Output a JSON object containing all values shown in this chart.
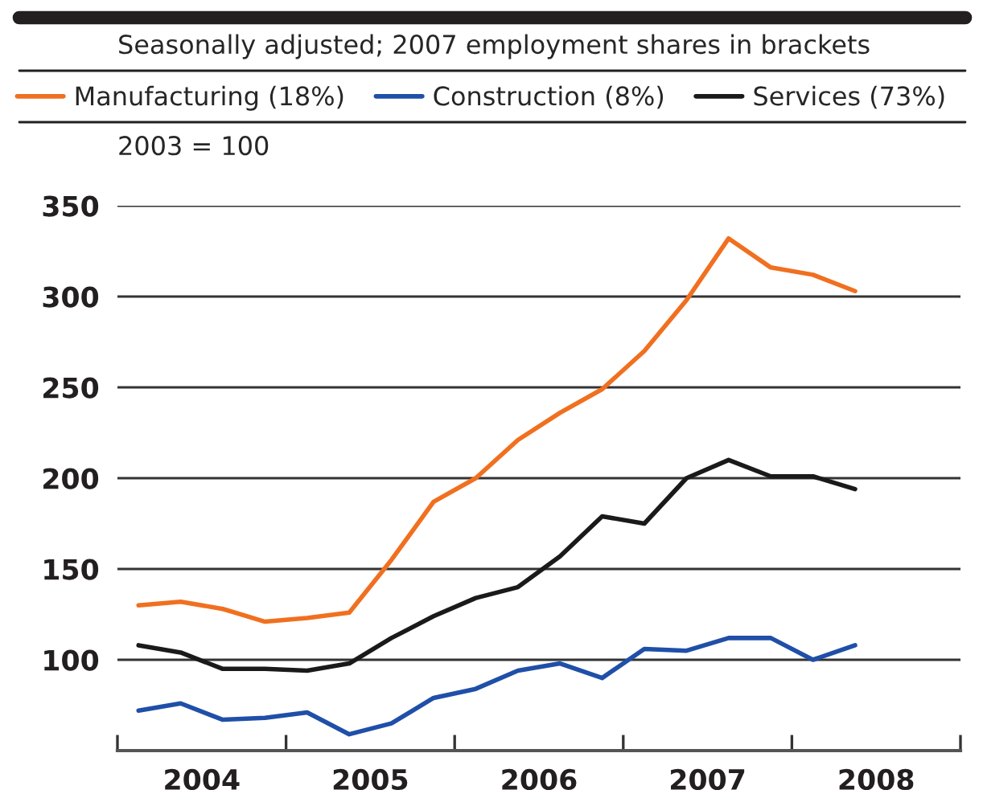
{
  "chart_data": {
    "type": "line",
    "subtitle": "Seasonally adjusted; 2007 employment shares in brackets",
    "ylabel": "2003 = 100",
    "x": [
      2004.125,
      2004.375,
      2004.625,
      2004.875,
      2005.125,
      2005.375,
      2005.625,
      2005.875,
      2006.125,
      2006.375,
      2006.625,
      2006.875,
      2007.125,
      2007.375,
      2007.625,
      2007.875,
      2008.125,
      2008.375
    ],
    "series": [
      {
        "name": "Manufacturing (18%)",
        "color": "#f07020",
        "values": [
          130,
          132,
          128,
          121,
          123,
          126,
          155,
          187,
          200,
          221,
          236,
          249,
          270,
          298,
          332,
          316,
          312,
          303
        ]
      },
      {
        "name": "Construction (8%)",
        "color": "#1f4fa8",
        "values": [
          72,
          76,
          67,
          68,
          71,
          59,
          65,
          79,
          84,
          94,
          98,
          90,
          106,
          105,
          112,
          112,
          100,
          108
        ]
      },
      {
        "name": "Services (73%)",
        "color": "#1a1a1a",
        "values": [
          108,
          104,
          95,
          95,
          94,
          98,
          112,
          124,
          134,
          140,
          157,
          179,
          175,
          200,
          210,
          201,
          201,
          194
        ]
      }
    ],
    "xlim": [
      2004,
      2009
    ],
    "xticks": [
      {
        "value": 2004,
        "label": null
      },
      {
        "value": 2005,
        "label": null
      },
      {
        "value": 2006,
        "label": null
      },
      {
        "value": 2007,
        "label": null
      },
      {
        "value": 2008,
        "label": null
      },
      {
        "value": 2009,
        "label": null
      },
      {
        "value": 2004.5,
        "label": "2004"
      },
      {
        "value": 2005.5,
        "label": "2005"
      },
      {
        "value": 2006.5,
        "label": "2006"
      },
      {
        "value": 2007.5,
        "label": "2007"
      },
      {
        "value": 2008.5,
        "label": "2008"
      }
    ],
    "ylim": [
      50,
      350
    ],
    "yticks": [
      100,
      150,
      200,
      250,
      300,
      350
    ],
    "grid": "y",
    "legend": "top",
    "marker": "none",
    "line_style": "solid"
  }
}
